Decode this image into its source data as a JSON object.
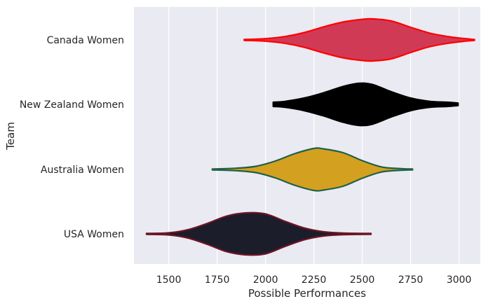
{
  "chart_data": {
    "type": "violin",
    "orientation": "horizontal",
    "xlabel": "Possible Performances",
    "ylabel": "Team",
    "xlim": [
      1320,
      3110
    ],
    "xticks": [
      1500,
      1750,
      2000,
      2250,
      2500,
      2750,
      3000
    ],
    "grid": true,
    "background": "#eaeaf2",
    "categories": [
      "Canada Women",
      "New Zealand Women",
      "Australia Women",
      "USA Women"
    ],
    "series": [
      {
        "category": "Canada Women",
        "fill": "#d13a55",
        "stroke": "#ff0000",
        "min": 1890,
        "max": 3080,
        "peak": 2555,
        "density": [
          [
            1890,
            0.02
          ],
          [
            2000,
            0.06
          ],
          [
            2100,
            0.16
          ],
          [
            2200,
            0.35
          ],
          [
            2300,
            0.62
          ],
          [
            2400,
            0.85
          ],
          [
            2500,
            0.98
          ],
          [
            2555,
            1.0
          ],
          [
            2650,
            0.9
          ],
          [
            2750,
            0.6
          ],
          [
            2850,
            0.32
          ],
          [
            2950,
            0.15
          ],
          [
            3020,
            0.07
          ],
          [
            3080,
            0.02
          ]
        ]
      },
      {
        "category": "New Zealand Women",
        "fill": "#000000",
        "stroke": "#000000",
        "min": 2040,
        "max": 2995,
        "peak": 2480,
        "density": [
          [
            2040,
            0.1
          ],
          [
            2100,
            0.14
          ],
          [
            2200,
            0.3
          ],
          [
            2300,
            0.55
          ],
          [
            2400,
            0.85
          ],
          [
            2480,
            1.0
          ],
          [
            2550,
            0.95
          ],
          [
            2650,
            0.6
          ],
          [
            2750,
            0.3
          ],
          [
            2850,
            0.14
          ],
          [
            2940,
            0.1
          ],
          [
            2995,
            0.06
          ]
        ]
      },
      {
        "category": "Australia Women",
        "fill": "#d4a020",
        "stroke": "#1f6048",
        "min": 1725,
        "max": 2760,
        "peak": 2280,
        "density": [
          [
            1725,
            0.02
          ],
          [
            1850,
            0.06
          ],
          [
            1950,
            0.15
          ],
          [
            2050,
            0.4
          ],
          [
            2150,
            0.75
          ],
          [
            2250,
            1.0
          ],
          [
            2300,
            0.98
          ],
          [
            2400,
            0.8
          ],
          [
            2500,
            0.42
          ],
          [
            2600,
            0.12
          ],
          [
            2700,
            0.04
          ],
          [
            2760,
            0.02
          ]
        ]
      },
      {
        "category": "USA Women",
        "fill": "#1b1d2a",
        "stroke": "#6e1425",
        "min": 1385,
        "max": 2545,
        "peak": 1920,
        "density": [
          [
            1385,
            0.02
          ],
          [
            1500,
            0.05
          ],
          [
            1600,
            0.2
          ],
          [
            1700,
            0.5
          ],
          [
            1800,
            0.85
          ],
          [
            1900,
            1.0
          ],
          [
            2000,
            0.95
          ],
          [
            2100,
            0.6
          ],
          [
            2200,
            0.28
          ],
          [
            2300,
            0.1
          ],
          [
            2400,
            0.04
          ],
          [
            2545,
            0.02
          ]
        ]
      }
    ]
  }
}
